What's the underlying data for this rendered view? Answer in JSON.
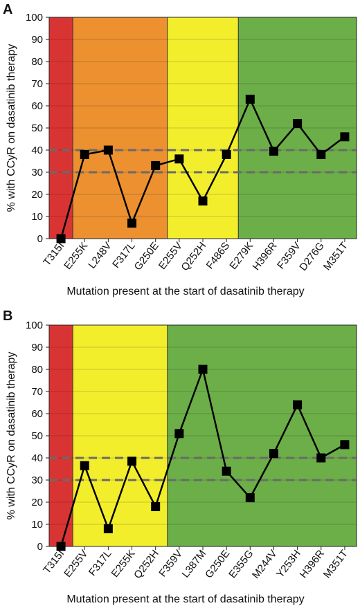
{
  "chart_data": [
    {
      "panel": "A",
      "type": "line",
      "xlabel": "Mutation present at the start of dasatinib therapy",
      "ylabel": "% with CCyR on dasatinib therapy",
      "ylim": [
        0,
        100
      ],
      "yticks": [
        0,
        10,
        20,
        30,
        40,
        50,
        60,
        70,
        80,
        90,
        100
      ],
      "grid": true,
      "categories": [
        "T315I",
        "E255K",
        "L248V",
        "F317L",
        "G250E",
        "E255V",
        "Q252H",
        "F486S",
        "E279K",
        "H396R",
        "F359V",
        "D276G",
        "M351T"
      ],
      "values": [
        0,
        38,
        40,
        7,
        33,
        36,
        17,
        38,
        63,
        39.5,
        52,
        38,
        46
      ],
      "reference_lines": [
        30,
        40
      ],
      "bands": [
        {
          "from": "T315I",
          "to": "T315I",
          "color": "#d93434"
        },
        {
          "from": "E255K",
          "to": "G250E",
          "color": "#ec9030"
        },
        {
          "from": "E255V",
          "to": "F486S",
          "color": "#f3ee2c"
        },
        {
          "from": "E279K",
          "to": "M351T",
          "color": "#6cae48"
        }
      ]
    },
    {
      "panel": "B",
      "type": "line",
      "xlabel": "Mutation present at the start of dasatinib therapy",
      "ylabel": "% with CCyR on dasatinib therapy",
      "ylim": [
        0,
        100
      ],
      "yticks": [
        0,
        10,
        20,
        30,
        40,
        50,
        60,
        70,
        80,
        90,
        100
      ],
      "grid": true,
      "categories": [
        "T315I",
        "E255V",
        "F317L",
        "E255K",
        "Q252H",
        "F359V",
        "L387M",
        "G250E",
        "E355G",
        "M244V",
        "Y253H",
        "H396R",
        "M351T"
      ],
      "values": [
        0,
        36.5,
        8,
        38.5,
        18,
        51,
        80,
        34,
        22,
        42,
        64,
        40,
        46
      ],
      "reference_lines": [
        30,
        40
      ],
      "bands": [
        {
          "from": "T315I",
          "to": "T315I",
          "color": "#d93434"
        },
        {
          "from": "E255V",
          "to": "Q252H",
          "color": "#f3ee2c"
        },
        {
          "from": "F359V",
          "to": "M351T",
          "color": "#6cae48"
        }
      ]
    }
  ]
}
